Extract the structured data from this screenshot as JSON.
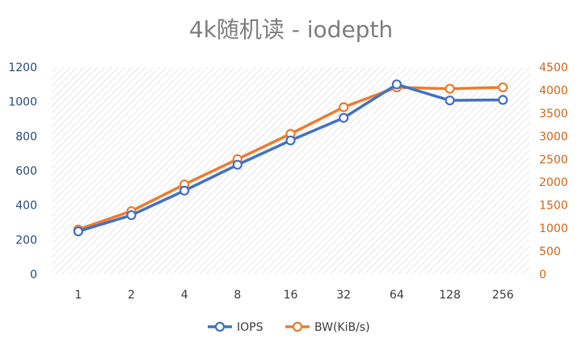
{
  "chart_data": {
    "type": "line",
    "title": "4k随机读 - iodepth",
    "categories": [
      "1",
      "2",
      "4",
      "8",
      "16",
      "32",
      "64",
      "128",
      "256"
    ],
    "series": [
      {
        "name": "IOPS",
        "axis": "left",
        "color": "#4472C4",
        "values": [
          248,
          342,
          484,
          634,
          775,
          906,
          1100,
          1007,
          1010
        ]
      },
      {
        "name": "BW(KiB/s)",
        "axis": "right",
        "color": "#ED7D31",
        "values": [
          970,
          1370,
          1950,
          2500,
          3050,
          3630,
          4060,
          4030,
          4060
        ]
      }
    ],
    "yleft": {
      "min": 0,
      "max": 1200,
      "ticks": [
        "0",
        "200",
        "400",
        "600",
        "800",
        "1000",
        "1200"
      ]
    },
    "yright": {
      "min": 0,
      "max": 4500,
      "ticks": [
        "0",
        "500",
        "1000",
        "1500",
        "2000",
        "2500",
        "3000",
        "3500",
        "4000",
        "4500"
      ]
    },
    "grid": false,
    "plot_background": "diagonal-hatch",
    "legend_position": "bottom",
    "colors": {
      "left_axis_text": "#2f4f7f",
      "right_axis_text": "#d2691e",
      "hatch": "#d9d9d9"
    }
  }
}
